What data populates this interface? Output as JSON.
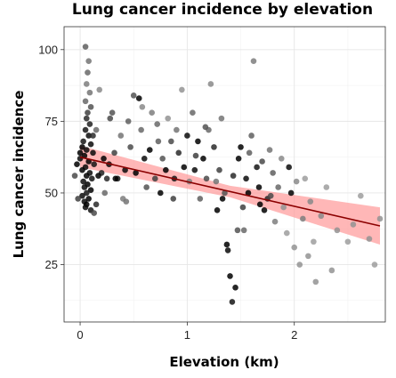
{
  "chart_data": {
    "type": "scatter",
    "title": "Lung cancer incidence by elevation",
    "xlabel": "Elevation (km)",
    "ylabel": "Lung cancer incidence",
    "xlim": [
      -0.15,
      2.85
    ],
    "ylim": [
      5,
      108
    ],
    "x_ticks": [
      0,
      1,
      2
    ],
    "x_tick_labels": [
      "0",
      "1",
      "2"
    ],
    "y_ticks": [
      25,
      50,
      75,
      100
    ],
    "y_tick_labels": [
      "25",
      "50",
      "75",
      "100"
    ],
    "grid": true,
    "regression": {
      "x_start": 0.0,
      "y_start": 62.5,
      "x_end": 2.8,
      "y_end": 38.5,
      "ci_at_start": [
        59,
        66.5
      ],
      "ci_at_end": [
        32,
        45
      ]
    },
    "points": [
      {
        "x": 0.05,
        "y": 101,
        "g": 0.45
      },
      {
        "x": 0.08,
        "y": 96,
        "g": 0.55
      },
      {
        "x": 0.07,
        "y": 92,
        "g": 0.5
      },
      {
        "x": 0.06,
        "y": 88,
        "g": 0.6
      },
      {
        "x": 0.09,
        "y": 85,
        "g": 0.55
      },
      {
        "x": 0.05,
        "y": 82,
        "g": 0.5
      },
      {
        "x": 0.1,
        "y": 80,
        "g": 0.4
      },
      {
        "x": 0.07,
        "y": 78,
        "g": 0.3
      },
      {
        "x": 0.06,
        "y": 76,
        "g": 0.2
      },
      {
        "x": 0.09,
        "y": 74,
        "g": 0.15
      },
      {
        "x": 0.05,
        "y": 72,
        "g": 0.1
      },
      {
        "x": 0.08,
        "y": 70,
        "g": 0.05
      },
      {
        "x": 0.03,
        "y": 68,
        "g": 0.1
      },
      {
        "x": 0.1,
        "y": 67,
        "g": 0.05
      },
      {
        "x": 0.02,
        "y": 66,
        "g": 0.0
      },
      {
        "x": 0.06,
        "y": 65,
        "g": 0.05
      },
      {
        "x": 0.12,
        "y": 64,
        "g": 0.05
      },
      {
        "x": 0.04,
        "y": 63,
        "g": 0.0
      },
      {
        "x": 0.0,
        "y": 62,
        "g": 0.05
      },
      {
        "x": 0.08,
        "y": 61,
        "g": 0.0
      },
      {
        "x": 0.13,
        "y": 60,
        "g": 0.1
      },
      {
        "x": 0.05,
        "y": 59,
        "g": 0.05
      },
      {
        "x": 0.02,
        "y": 58,
        "g": 0.0
      },
      {
        "x": 0.09,
        "y": 57,
        "g": 0.05
      },
      {
        "x": 0.06,
        "y": 56,
        "g": 0.0
      },
      {
        "x": 0.11,
        "y": 55,
        "g": 0.1
      },
      {
        "x": 0.03,
        "y": 54,
        "g": 0.05
      },
      {
        "x": 0.07,
        "y": 53,
        "g": 0.0
      },
      {
        "x": 0.04,
        "y": 52,
        "g": 0.05
      },
      {
        "x": 0.1,
        "y": 51,
        "g": 0.0
      },
      {
        "x": 0.06,
        "y": 50,
        "g": 0.1
      },
      {
        "x": 0.02,
        "y": 49,
        "g": 0.05
      },
      {
        "x": 0.08,
        "y": 48,
        "g": 0.0
      },
      {
        "x": 0.04,
        "y": 47,
        "g": 0.05
      },
      {
        "x": 0.06,
        "y": 46,
        "g": 0.0
      },
      {
        "x": 0.05,
        "y": 45,
        "g": 0.05
      },
      {
        "x": 0.1,
        "y": 44,
        "g": 0.1
      },
      {
        "x": 0.13,
        "y": 43,
        "g": 0.35
      },
      {
        "x": 0.15,
        "y": 46,
        "g": 0.2
      },
      {
        "x": -0.02,
        "y": 48,
        "g": 0.3
      },
      {
        "x": -0.03,
        "y": 60,
        "g": 0.0
      },
      {
        "x": 0.0,
        "y": 64,
        "g": 0.0
      },
      {
        "x": 0.12,
        "y": 70,
        "g": 0.2
      },
      {
        "x": 0.15,
        "y": 72,
        "g": 0.5
      },
      {
        "x": 0.18,
        "y": 86,
        "g": 0.65
      },
      {
        "x": 0.2,
        "y": 57,
        "g": 0.15
      },
      {
        "x": 0.22,
        "y": 62,
        "g": 0.0
      },
      {
        "x": 0.25,
        "y": 55,
        "g": 0.2
      },
      {
        "x": 0.27,
        "y": 60,
        "g": 0.05
      },
      {
        "x": 0.3,
        "y": 78,
        "g": 0.4
      },
      {
        "x": 0.28,
        "y": 76,
        "g": 0.35
      },
      {
        "x": 0.32,
        "y": 64,
        "g": 0.3
      },
      {
        "x": 0.35,
        "y": 55,
        "g": 0.1
      },
      {
        "x": 0.38,
        "y": 70,
        "g": 0.55
      },
      {
        "x": 0.4,
        "y": 48,
        "g": 0.6
      },
      {
        "x": 0.42,
        "y": 58,
        "g": 0.05
      },
      {
        "x": 0.45,
        "y": 75,
        "g": 0.45
      },
      {
        "x": 0.47,
        "y": 66,
        "g": 0.35
      },
      {
        "x": 0.5,
        "y": 84,
        "g": 0.4
      },
      {
        "x": 0.52,
        "y": 57,
        "g": 0.0
      },
      {
        "x": 0.55,
        "y": 83,
        "g": 0.0
      },
      {
        "x": 0.57,
        "y": 72,
        "g": 0.5
      },
      {
        "x": 0.6,
        "y": 62,
        "g": 0.05
      },
      {
        "x": 0.62,
        "y": 52,
        "g": 0.4
      },
      {
        "x": 0.65,
        "y": 65,
        "g": 0.0
      },
      {
        "x": 0.67,
        "y": 78,
        "g": 0.6
      },
      {
        "x": 0.7,
        "y": 55,
        "g": 0.3
      },
      {
        "x": 0.72,
        "y": 74,
        "g": 0.5
      },
      {
        "x": 0.75,
        "y": 50,
        "g": 0.0
      },
      {
        "x": 0.77,
        "y": 62,
        "g": 0.4
      },
      {
        "x": 0.8,
        "y": 58,
        "g": 0.0
      },
      {
        "x": 0.82,
        "y": 76,
        "g": 0.7
      },
      {
        "x": 0.85,
        "y": 68,
        "g": 0.35
      },
      {
        "x": 0.88,
        "y": 55,
        "g": 0.1
      },
      {
        "x": 0.9,
        "y": 72,
        "g": 0.55
      },
      {
        "x": 0.92,
        "y": 64,
        "g": 0.2
      },
      {
        "x": 0.95,
        "y": 86,
        "g": 0.7
      },
      {
        "x": 0.97,
        "y": 59,
        "g": 0.0
      },
      {
        "x": 1.0,
        "y": 70,
        "g": 0.05
      },
      {
        "x": 1.02,
        "y": 54,
        "g": 0.6
      },
      {
        "x": 1.05,
        "y": 78,
        "g": 0.5
      },
      {
        "x": 1.08,
        "y": 63,
        "g": 0.3
      },
      {
        "x": 1.1,
        "y": 68,
        "g": 0.0
      },
      {
        "x": 1.12,
        "y": 48,
        "g": 0.45
      },
      {
        "x": 1.15,
        "y": 62,
        "g": 0.0
      },
      {
        "x": 1.18,
        "y": 55,
        "g": 0.35
      },
      {
        "x": 1.2,
        "y": 72,
        "g": 0.5
      },
      {
        "x": 1.22,
        "y": 88,
        "g": 0.65
      },
      {
        "x": 1.25,
        "y": 66,
        "g": 0.2
      },
      {
        "x": 1.28,
        "y": 44,
        "g": 0.0
      },
      {
        "x": 1.3,
        "y": 58,
        "g": 0.3
      },
      {
        "x": 1.32,
        "y": 76,
        "g": 0.55
      },
      {
        "x": 1.35,
        "y": 50,
        "g": 0.4
      },
      {
        "x": 1.37,
        "y": 32,
        "g": 0.0
      },
      {
        "x": 1.38,
        "y": 30,
        "g": 0.05
      },
      {
        "x": 1.4,
        "y": 21,
        "g": 0.0
      },
      {
        "x": 1.42,
        "y": 12,
        "g": 0.1
      },
      {
        "x": 1.45,
        "y": 17,
        "g": 0.0
      },
      {
        "x": 1.47,
        "y": 37,
        "g": 0.4
      },
      {
        "x": 1.48,
        "y": 62,
        "g": 0.0
      },
      {
        "x": 1.5,
        "y": 66,
        "g": 0.0
      },
      {
        "x": 1.52,
        "y": 45,
        "g": 0.3
      },
      {
        "x": 1.55,
        "y": 55,
        "g": 0.05
      },
      {
        "x": 1.57,
        "y": 50,
        "g": 0.0
      },
      {
        "x": 1.6,
        "y": 70,
        "g": 0.45
      },
      {
        "x": 1.62,
        "y": 96,
        "g": 0.6
      },
      {
        "x": 1.65,
        "y": 59,
        "g": 0.1
      },
      {
        "x": 1.67,
        "y": 52,
        "g": 0.0
      },
      {
        "x": 1.7,
        "y": 61,
        "g": 0.35
      },
      {
        "x": 1.72,
        "y": 44,
        "g": 0.0
      },
      {
        "x": 1.75,
        "y": 48,
        "g": 0.2
      },
      {
        "x": 1.77,
        "y": 65,
        "g": 0.55
      },
      {
        "x": 1.8,
        "y": 57,
        "g": 0.45
      },
      {
        "x": 1.82,
        "y": 40,
        "g": 0.6
      },
      {
        "x": 1.85,
        "y": 52,
        "g": 0.5
      },
      {
        "x": 1.88,
        "y": 62,
        "g": 0.65
      },
      {
        "x": 1.9,
        "y": 45,
        "g": 0.7
      },
      {
        "x": 1.93,
        "y": 36,
        "g": 0.75
      },
      {
        "x": 1.95,
        "y": 59,
        "g": 0.05
      },
      {
        "x": 1.97,
        "y": 50,
        "g": 0.0
      },
      {
        "x": 2.0,
        "y": 31,
        "g": 0.7
      },
      {
        "x": 2.02,
        "y": 54,
        "g": 0.65
      },
      {
        "x": 2.05,
        "y": 25,
        "g": 0.7
      },
      {
        "x": 2.08,
        "y": 41,
        "g": 0.6
      },
      {
        "x": 2.1,
        "y": 55,
        "g": 0.75
      },
      {
        "x": 2.13,
        "y": 28,
        "g": 0.7
      },
      {
        "x": 2.15,
        "y": 47,
        "g": 0.65
      },
      {
        "x": 2.18,
        "y": 33,
        "g": 0.75
      },
      {
        "x": 2.2,
        "y": 19,
        "g": 0.7
      },
      {
        "x": 2.25,
        "y": 42,
        "g": 0.65
      },
      {
        "x": 2.3,
        "y": 52,
        "g": 0.75
      },
      {
        "x": 2.35,
        "y": 23,
        "g": 0.7
      },
      {
        "x": 2.4,
        "y": 37,
        "g": 0.7
      },
      {
        "x": 2.5,
        "y": 33,
        "g": 0.75
      },
      {
        "x": 2.55,
        "y": 39,
        "g": 0.7
      },
      {
        "x": 2.62,
        "y": 49,
        "g": 0.75
      },
      {
        "x": 2.7,
        "y": 34,
        "g": 0.7
      },
      {
        "x": 2.75,
        "y": 25,
        "g": 0.75
      },
      {
        "x": 2.8,
        "y": 41,
        "g": 0.7
      },
      {
        "x": -0.05,
        "y": 56,
        "g": 0.35
      },
      {
        "x": 0.17,
        "y": 56,
        "g": 0.0
      },
      {
        "x": 0.23,
        "y": 50,
        "g": 0.5
      },
      {
        "x": 0.33,
        "y": 55,
        "g": 0.0
      },
      {
        "x": 0.43,
        "y": 47,
        "g": 0.55
      },
      {
        "x": 0.58,
        "y": 80,
        "g": 0.65
      },
      {
        "x": 0.73,
        "y": 68,
        "g": 0.45
      },
      {
        "x": 0.87,
        "y": 48,
        "g": 0.3
      },
      {
        "x": 1.07,
        "y": 58,
        "g": 0.05
      },
      {
        "x": 1.17,
        "y": 73,
        "g": 0.4
      },
      {
        "x": 1.27,
        "y": 54,
        "g": 0.55
      },
      {
        "x": 1.33,
        "y": 48,
        "g": 0.0
      },
      {
        "x": 1.43,
        "y": 56,
        "g": 0.2
      },
      {
        "x": 1.53,
        "y": 37,
        "g": 0.5
      },
      {
        "x": 1.58,
        "y": 64,
        "g": 0.45
      },
      {
        "x": 1.68,
        "y": 46,
        "g": 0.0
      },
      {
        "x": 1.78,
        "y": 49,
        "g": 0.35
      }
    ]
  }
}
